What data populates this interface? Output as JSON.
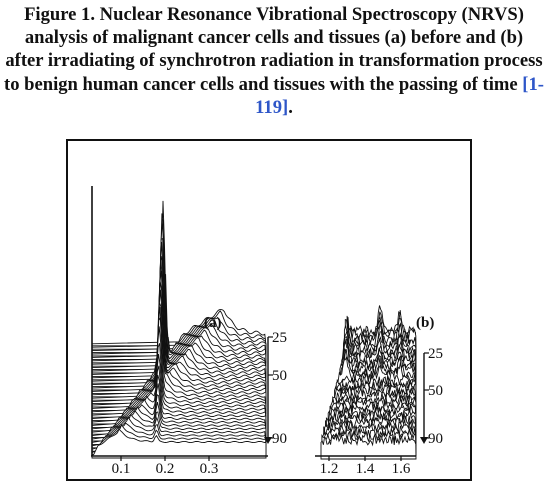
{
  "caption": {
    "label": "Figure 1.",
    "text": "Nuclear Resonance Vibrational Spectroscopy (NRVS) analysis of malignant cancer cells and tissues (a) before and (b) after irradiating of synchrotron radiation in transformation process to benign human cancer cells and tissues with the passing of time",
    "reference": "[1-119]",
    "end": "."
  },
  "colors": {
    "ink": "#111111",
    "reference": "#2e56c8",
    "background": "#ffffff"
  },
  "chart_data": [
    {
      "type": "area",
      "panel_label": "(a)",
      "x_ticks": [
        "0.1",
        "0.2",
        "0.3"
      ],
      "depth_ticks": [
        "25",
        "50",
        "90"
      ],
      "trace_count": 34,
      "features": [
        {
          "x": 0.02,
          "relative_height": 0.28
        },
        {
          "x": 0.18,
          "relative_height": 1.0
        }
      ]
    },
    {
      "type": "area",
      "panel_label": "(b)",
      "x_ticks": [
        "1.2",
        "1.4",
        "1.6"
      ],
      "depth_ticks": [
        "25",
        "50",
        "90"
      ],
      "trace_count": 34
    }
  ]
}
